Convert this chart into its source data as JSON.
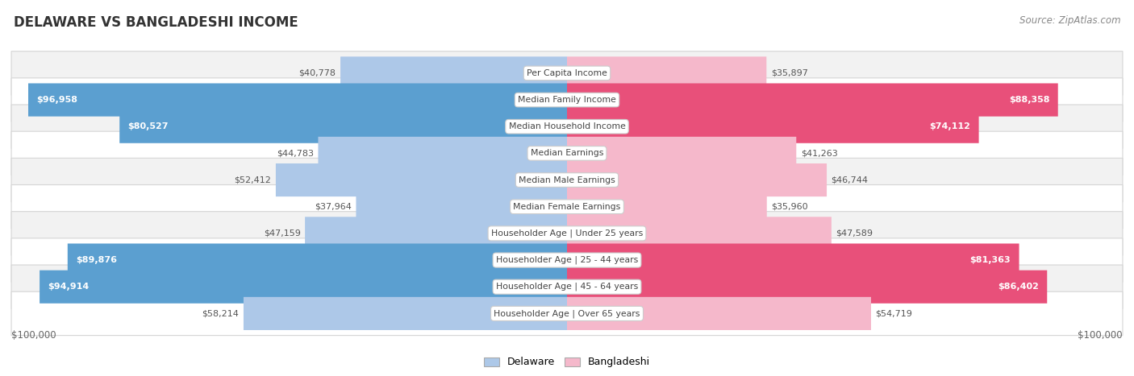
{
  "title": "DELAWARE VS BANGLADESHI INCOME",
  "source": "Source: ZipAtlas.com",
  "categories": [
    "Per Capita Income",
    "Median Family Income",
    "Median Household Income",
    "Median Earnings",
    "Median Male Earnings",
    "Median Female Earnings",
    "Householder Age | Under 25 years",
    "Householder Age | 25 - 44 years",
    "Householder Age | 45 - 64 years",
    "Householder Age | Over 65 years"
  ],
  "delaware_values": [
    40778,
    96958,
    80527,
    44783,
    52412,
    37964,
    47159,
    89876,
    94914,
    58214
  ],
  "bangladeshi_values": [
    35897,
    88358,
    74112,
    41263,
    46744,
    35960,
    47589,
    81363,
    86402,
    54719
  ],
  "delaware_labels": [
    "$40,778",
    "$96,958",
    "$80,527",
    "$44,783",
    "$52,412",
    "$37,964",
    "$47,159",
    "$89,876",
    "$94,914",
    "$58,214"
  ],
  "bangladeshi_labels": [
    "$35,897",
    "$88,358",
    "$74,112",
    "$41,263",
    "$46,744",
    "$35,960",
    "$47,589",
    "$81,363",
    "$86,402",
    "$54,719"
  ],
  "max_value": 100000,
  "del_light": "#adc8e8",
  "del_dark": "#5b9fd0",
  "ban_light": "#f5b8cb",
  "ban_dark": "#e8507a",
  "row_odd": "#f2f2f2",
  "row_even": "#ffffff",
  "label_dark_threshold": 70000,
  "x_axis_label_left": "$100,000",
  "x_axis_label_right": "$100,000",
  "legend_delaware": "Delaware",
  "legend_bangladeshi": "Bangladeshi",
  "background_color": "#ffffff"
}
